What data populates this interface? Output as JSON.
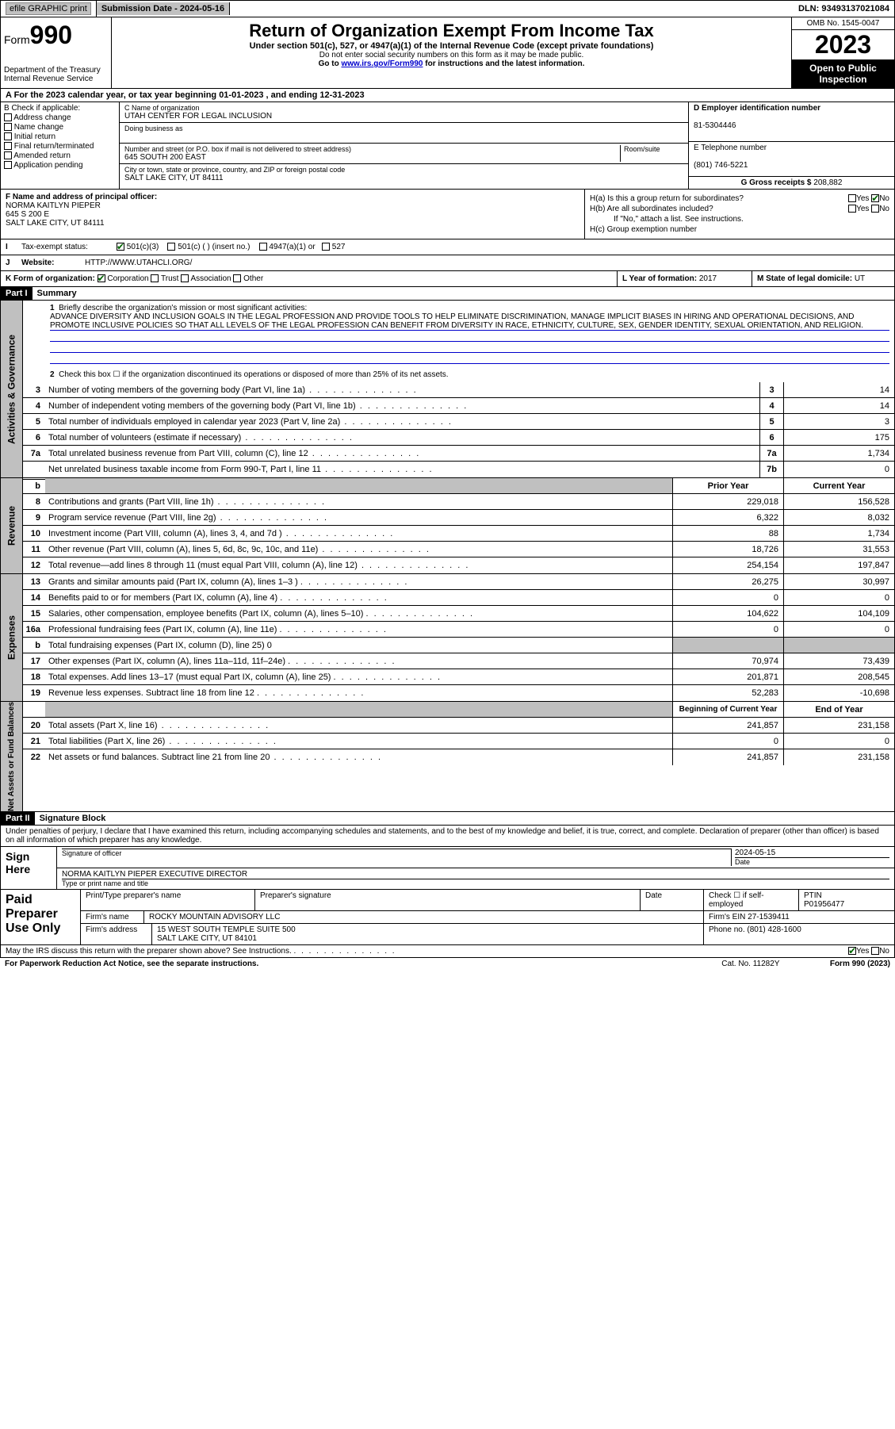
{
  "topbar": {
    "efile": "efile GRAPHIC print",
    "submission": "Submission Date - 2024-05-16",
    "dln": "DLN: 93493137021084"
  },
  "header": {
    "form": "Form",
    "form_num": "990",
    "title": "Return of Organization Exempt From Income Tax",
    "subtitle": "Under section 501(c), 527, or 4947(a)(1) of the Internal Revenue Code (except private foundations)",
    "note1": "Do not enter social security numbers on this form as it may be made public.",
    "note2_pre": "Go to ",
    "note2_link": "www.irs.gov/Form990",
    "note2_post": " for instructions and the latest information.",
    "dept": "Department of the Treasury",
    "irs": "Internal Revenue Service",
    "omb": "OMB No. 1545-0047",
    "year": "2023",
    "open": "Open to Public Inspection"
  },
  "row_a": "A For the 2023 calendar year, or tax year beginning 01-01-2023   , and ending 12-31-2023",
  "col_b": {
    "label": "B Check if applicable:",
    "opts": [
      "Address change",
      "Name change",
      "Initial return",
      "Final return/terminated",
      "Amended return",
      "Application pending"
    ]
  },
  "col_c": {
    "name_label": "C Name of organization",
    "name": "UTAH CENTER FOR LEGAL INCLUSION",
    "dba_label": "Doing business as",
    "addr_label": "Number and street (or P.O. box if mail is not delivered to street address)",
    "room": "Room/suite",
    "addr": "645 SOUTH 200 EAST",
    "city_label": "City or town, state or province, country, and ZIP or foreign postal code",
    "city": "SALT LAKE CITY, UT  84111"
  },
  "col_d": {
    "label": "D Employer identification number",
    "val": "81-5304446"
  },
  "col_e": {
    "label": "E Telephone number",
    "val": "(801) 746-5221"
  },
  "col_g": {
    "label": "G Gross receipts $",
    "val": "208,882"
  },
  "col_f": {
    "label": "F Name and address of principal officer:",
    "name": "NORMA KAITLYN PIEPER",
    "addr1": "645 S 200 E",
    "addr2": "SALT LAKE CITY, UT  84111"
  },
  "col_h": {
    "a": "H(a)  Is this a group return for subordinates?",
    "b": "H(b)  Are all subordinates included?",
    "b_note": "If \"No,\" attach a list. See instructions.",
    "c": "H(c)  Group exemption number",
    "yes": "Yes",
    "no": "No"
  },
  "row_i": {
    "label": "Tax-exempt status:",
    "opts": [
      "501(c)(3)",
      "501(c) (  ) (insert no.)",
      "4947(a)(1) or",
      "527"
    ]
  },
  "row_j": {
    "label": "Website:",
    "val": "HTTP://WWW.UTAHCLI.ORG/"
  },
  "row_k": {
    "label": "K Form of organization:",
    "opts": [
      "Corporation",
      "Trust",
      "Association",
      "Other"
    ]
  },
  "row_l": {
    "label": "L Year of formation:",
    "val": "2017"
  },
  "row_m": {
    "label": "M State of legal domicile:",
    "val": "UT"
  },
  "part1": {
    "tag": "Part I",
    "title": "Summary"
  },
  "summary": {
    "q1": "Briefly describe the organization's mission or most significant activities:",
    "mission": "ADVANCE DIVERSITY AND INCLUSION GOALS IN THE LEGAL PROFESSION AND PROVIDE TOOLS TO HELP ELIMINATE DISCRIMINATION, MANAGE IMPLICIT BIASES IN HIRING AND OPERATIONAL DECISIONS, AND PROMOTE INCLUSIVE POLICIES SO THAT ALL LEVELS OF THE LEGAL PROFESSION CAN BENEFIT FROM DIVERSITY IN RACE, ETHNICITY, CULTURE, SEX, GENDER IDENTITY, SEXUAL ORIENTATION, AND RELIGION.",
    "q2": "Check this box ☐ if the organization discontinued its operations or disposed of more than 25% of its net assets.",
    "rows": [
      {
        "n": "3",
        "d": "Number of voting members of the governing body (Part VI, line 1a)",
        "b": "3",
        "v": "14"
      },
      {
        "n": "4",
        "d": "Number of independent voting members of the governing body (Part VI, line 1b)",
        "b": "4",
        "v": "14"
      },
      {
        "n": "5",
        "d": "Total number of individuals employed in calendar year 2023 (Part V, line 2a)",
        "b": "5",
        "v": "3"
      },
      {
        "n": "6",
        "d": "Total number of volunteers (estimate if necessary)",
        "b": "6",
        "v": "175"
      },
      {
        "n": "7a",
        "d": "Total unrelated business revenue from Part VIII, column (C), line 12",
        "b": "7a",
        "v": "1,734"
      },
      {
        "n": "",
        "d": "Net unrelated business taxable income from Form 990-T, Part I, line 11",
        "b": "7b",
        "v": "0"
      }
    ]
  },
  "revenue": {
    "head_prior": "Prior Year",
    "head_curr": "Current Year",
    "rows": [
      {
        "n": "8",
        "d": "Contributions and grants (Part VIII, line 1h)",
        "p": "229,018",
        "c": "156,528"
      },
      {
        "n": "9",
        "d": "Program service revenue (Part VIII, line 2g)",
        "p": "6,322",
        "c": "8,032"
      },
      {
        "n": "10",
        "d": "Investment income (Part VIII, column (A), lines 3, 4, and 7d )",
        "p": "88",
        "c": "1,734"
      },
      {
        "n": "11",
        "d": "Other revenue (Part VIII, column (A), lines 5, 6d, 8c, 9c, 10c, and 11e)",
        "p": "18,726",
        "c": "31,553"
      },
      {
        "n": "12",
        "d": "Total revenue—add lines 8 through 11 (must equal Part VIII, column (A), line 12)",
        "p": "254,154",
        "c": "197,847"
      }
    ]
  },
  "expenses": {
    "rows": [
      {
        "n": "13",
        "d": "Grants and similar amounts paid (Part IX, column (A), lines 1–3 )",
        "p": "26,275",
        "c": "30,997"
      },
      {
        "n": "14",
        "d": "Benefits paid to or for members (Part IX, column (A), line 4)",
        "p": "0",
        "c": "0"
      },
      {
        "n": "15",
        "d": "Salaries, other compensation, employee benefits (Part IX, column (A), lines 5–10)",
        "p": "104,622",
        "c": "104,109"
      },
      {
        "n": "16a",
        "d": "Professional fundraising fees (Part IX, column (A), line 11e)",
        "p": "0",
        "c": "0"
      },
      {
        "n": "b",
        "d": "Total fundraising expenses (Part IX, column (D), line 25) 0",
        "p": "",
        "c": "",
        "gray": true
      },
      {
        "n": "17",
        "d": "Other expenses (Part IX, column (A), lines 11a–11d, 11f–24e)",
        "p": "70,974",
        "c": "73,439"
      },
      {
        "n": "18",
        "d": "Total expenses. Add lines 13–17 (must equal Part IX, column (A), line 25)",
        "p": "201,871",
        "c": "208,545"
      },
      {
        "n": "19",
        "d": "Revenue less expenses. Subtract line 18 from line 12",
        "p": "52,283",
        "c": "-10,698"
      }
    ]
  },
  "netassets": {
    "head_prior": "Beginning of Current Year",
    "head_curr": "End of Year",
    "rows": [
      {
        "n": "20",
        "d": "Total assets (Part X, line 16)",
        "p": "241,857",
        "c": "231,158"
      },
      {
        "n": "21",
        "d": "Total liabilities (Part X, line 26)",
        "p": "0",
        "c": "0"
      },
      {
        "n": "22",
        "d": "Net assets or fund balances. Subtract line 21 from line 20",
        "p": "241,857",
        "c": "231,158"
      }
    ]
  },
  "part2": {
    "tag": "Part II",
    "title": "Signature Block"
  },
  "sig": {
    "perjury": "Under penalties of perjury, I declare that I have examined this return, including accompanying schedules and statements, and to the best of my knowledge and belief, it is true, correct, and complete. Declaration of preparer (other than officer) is based on all information of which preparer has any knowledge.",
    "sign_here": "Sign Here",
    "sig_officer": "Signature of officer",
    "date": "Date",
    "date_val": "2024-05-15",
    "officer_name": "NORMA KAITLYN PIEPER  EXECUTIVE DIRECTOR",
    "type_name": "Type or print name and title"
  },
  "paid": {
    "label": "Paid Preparer Use Only",
    "col1": "Print/Type preparer's name",
    "col2": "Preparer's signature",
    "col3": "Date",
    "check": "Check ☐ if self-employed",
    "ptin_l": "PTIN",
    "ptin": "P01956477",
    "firm_l": "Firm's name",
    "firm": "ROCKY MOUNTAIN ADVISORY LLC",
    "ein_l": "Firm's EIN",
    "ein": "27-1539411",
    "addr_l": "Firm's address",
    "addr1": "15 WEST SOUTH TEMPLE SUITE 500",
    "addr2": "SALT LAKE CITY, UT  84101",
    "phone_l": "Phone no.",
    "phone": "(801) 428-1600"
  },
  "footer": {
    "discuss": "May the IRS discuss this return with the preparer shown above? See Instructions.",
    "yes": "Yes",
    "no": "No",
    "pra": "For Paperwork Reduction Act Notice, see the separate instructions.",
    "cat": "Cat. No. 11282Y",
    "form": "Form 990 (2023)"
  },
  "vtabs": {
    "gov": "Activities & Governance",
    "rev": "Revenue",
    "exp": "Expenses",
    "net": "Net Assets or Fund Balances"
  }
}
